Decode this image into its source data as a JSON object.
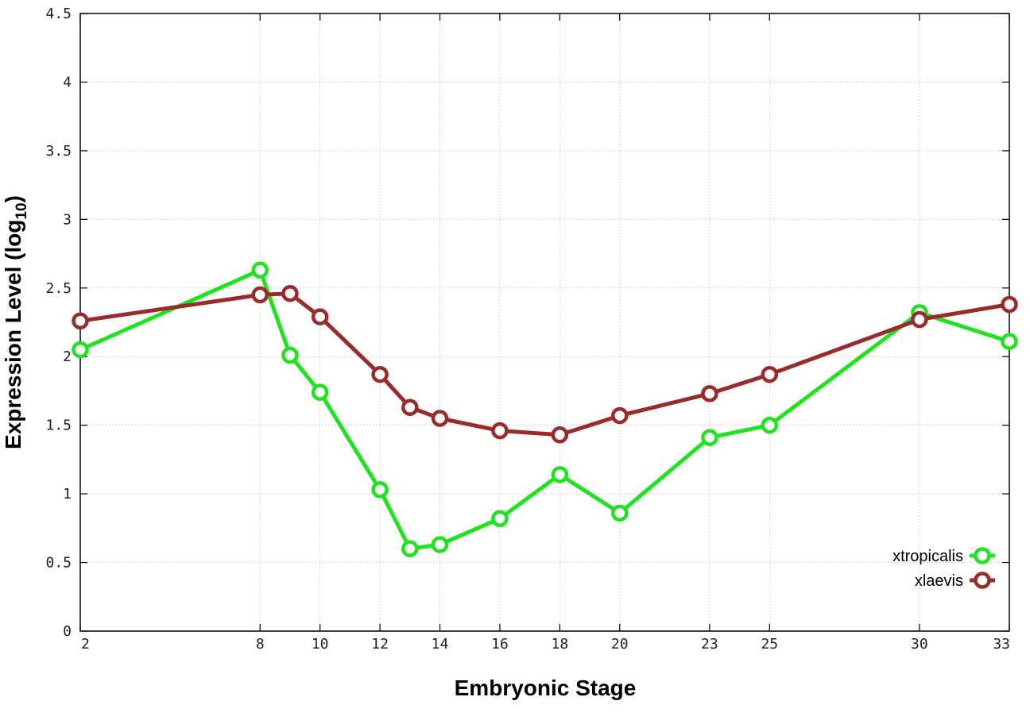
{
  "chart_data": {
    "type": "line",
    "title": "",
    "xlabel": "Embryonic Stage",
    "ylabel": "Expression Level (log",
    "ylabel_subscript": "10",
    "ylabel_close": ")",
    "xlim": [
      2,
      33
    ],
    "ylim": [
      0,
      4.5
    ],
    "x_ticks": [
      2,
      8,
      10,
      12,
      14,
      16,
      18,
      20,
      23,
      25,
      30,
      33
    ],
    "x_tick_labels": [
      "2",
      "8",
      "10",
      "12",
      "14",
      "16",
      "18",
      "20",
      "23",
      "25",
      "30",
      "33"
    ],
    "y_ticks": [
      0,
      0.5,
      1,
      1.5,
      2,
      2.5,
      3,
      3.5,
      4,
      4.5
    ],
    "y_tick_labels": [
      "0",
      "0.5",
      "1",
      "1.5",
      "2",
      "2.5",
      "3",
      "3.5",
      "4",
      "4.5"
    ],
    "grid": true,
    "legend_position": "bottom-right",
    "series": [
      {
        "name": "xtropicalis",
        "color": "#1fe31f",
        "x": [
          2,
          8,
          9,
          10,
          12,
          13,
          14,
          16,
          18,
          20,
          23,
          25,
          30,
          33
        ],
        "y": [
          2.05,
          2.63,
          2.01,
          1.74,
          1.03,
          0.6,
          0.63,
          0.82,
          1.14,
          0.86,
          1.41,
          1.5,
          2.32,
          2.11
        ]
      },
      {
        "name": "xlaevis",
        "color": "#9b2a2a",
        "x": [
          2,
          8,
          9,
          10,
          12,
          13,
          14,
          16,
          18,
          20,
          23,
          25,
          30,
          33
        ],
        "y": [
          2.26,
          2.45,
          2.46,
          2.29,
          1.87,
          1.63,
          1.55,
          1.46,
          1.43,
          1.57,
          1.73,
          1.87,
          2.27,
          2.38
        ]
      }
    ]
  }
}
